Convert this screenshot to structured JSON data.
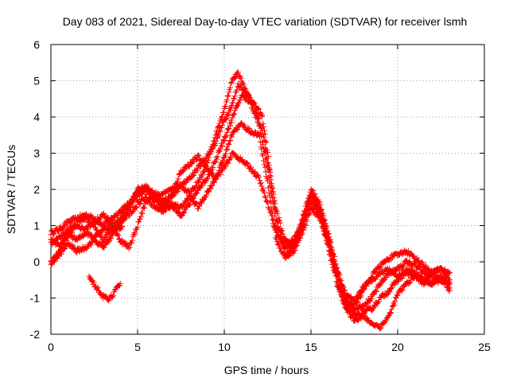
{
  "chart_data": {
    "type": "scatter",
    "title": "Day 083 of 2021, Sidereal Day-to-day VTEC variation (SDTVAR) for receiver lsmh",
    "xlabel": "GPS time / hours",
    "ylabel": "SDTVAR / TECUs",
    "xlim": [
      0,
      25
    ],
    "ylim": [
      -2,
      6
    ],
    "x_ticks": [
      "0",
      "5",
      "10",
      "15",
      "20",
      "25"
    ],
    "y_ticks": [
      "-2",
      "-1",
      "0",
      "1",
      "2",
      "3",
      "4",
      "5",
      "6"
    ],
    "grid": true,
    "marker": "plus",
    "color": "#ff0000",
    "series": [
      {
        "points": [
          [
            0,
            0.8
          ],
          [
            0.5,
            0.9
          ],
          [
            1,
            1.1
          ],
          [
            1.5,
            1.2
          ],
          [
            2,
            1.3
          ],
          [
            2.5,
            1.2
          ],
          [
            3,
            1.0
          ],
          [
            3.5,
            1.2
          ],
          [
            4,
            1.4
          ],
          [
            4.5,
            1.6
          ],
          [
            5,
            1.8
          ],
          [
            5.5,
            2.0
          ],
          [
            6,
            1.9
          ],
          [
            6.5,
            1.7
          ],
          [
            7,
            1.8
          ],
          [
            7.5,
            2.1
          ],
          [
            8,
            2.3
          ],
          [
            8.5,
            2.6
          ],
          [
            9,
            2.9
          ],
          [
            9.5,
            3.3
          ],
          [
            10,
            3.9
          ],
          [
            10.5,
            4.4
          ],
          [
            10.8,
            4.9
          ],
          [
            11.2,
            4.7
          ],
          [
            11.8,
            4.3
          ],
          [
            12.2,
            4.0
          ],
          [
            12.5,
            3.0
          ],
          [
            13,
            1.2
          ],
          [
            13.5,
            0.4
          ],
          [
            14,
            0.5
          ],
          [
            14.5,
            1.0
          ],
          [
            15,
            1.9
          ],
          [
            15.5,
            1.5
          ],
          [
            16,
            0.7
          ],
          [
            16.5,
            -0.3
          ],
          [
            17,
            -1.1
          ],
          [
            17.5,
            -1.3
          ],
          [
            18,
            -1.2
          ],
          [
            18.5,
            -1.0
          ],
          [
            19,
            -0.6
          ],
          [
            19.5,
            -0.3
          ],
          [
            20,
            -0.2
          ],
          [
            20.5,
            0.0
          ],
          [
            21,
            -0.1
          ],
          [
            21.5,
            -0.3
          ],
          [
            22,
            -0.4
          ],
          [
            22.5,
            -0.5
          ],
          [
            23,
            -0.7
          ]
        ]
      },
      {
        "points": [
          [
            0,
            0.5
          ],
          [
            0.5,
            0.7
          ],
          [
            1,
            0.8
          ],
          [
            1.5,
            0.6
          ],
          [
            2,
            0.8
          ],
          [
            2.5,
            0.7
          ],
          [
            3,
            0.9
          ],
          [
            3.5,
            1.0
          ],
          [
            4,
            0.6
          ],
          [
            4.5,
            0.4
          ],
          [
            5,
            1.0
          ],
          [
            5.5,
            1.7
          ],
          [
            6,
            1.8
          ],
          [
            6.5,
            1.4
          ],
          [
            7,
            1.6
          ],
          [
            7.5,
            1.5
          ],
          [
            8,
            1.8
          ],
          [
            8.5,
            1.5
          ],
          [
            9,
            1.9
          ],
          [
            9.5,
            2.3
          ],
          [
            10,
            2.9
          ],
          [
            10.5,
            3.6
          ],
          [
            11,
            3.8
          ],
          [
            11.5,
            3.6
          ],
          [
            12,
            3.5
          ],
          [
            12.5,
            2.2
          ],
          [
            13,
            0.6
          ],
          [
            13.5,
            0.1
          ],
          [
            14,
            0.3
          ],
          [
            14.5,
            0.8
          ],
          [
            15,
            1.5
          ],
          [
            15.5,
            1.2
          ],
          [
            16,
            0.4
          ],
          [
            16.5,
            -0.6
          ],
          [
            17,
            -1.2
          ],
          [
            17.5,
            -1.5
          ],
          [
            18,
            -1.4
          ],
          [
            18.5,
            -1.3
          ],
          [
            19,
            -1.0
          ],
          [
            19.5,
            -0.8
          ],
          [
            20,
            -0.5
          ],
          [
            20.5,
            -0.3
          ],
          [
            21,
            -0.4
          ],
          [
            21.5,
            -0.6
          ],
          [
            22,
            -0.3
          ],
          [
            22.5,
            -0.2
          ],
          [
            23,
            -0.5
          ]
        ]
      },
      {
        "points": [
          [
            0,
            0.0
          ],
          [
            0.5,
            0.2
          ],
          [
            1,
            0.5
          ],
          [
            1.5,
            0.3
          ],
          [
            2,
            0.4
          ],
          [
            2.5,
            0.6
          ],
          [
            3,
            0.4
          ],
          [
            3.5,
            0.7
          ],
          [
            4,
            1.1
          ],
          [
            4.5,
            1.3
          ],
          [
            5,
            1.6
          ],
          [
            5.5,
            1.8
          ],
          [
            6,
            1.5
          ],
          [
            6.5,
            1.4
          ],
          [
            7,
            1.9
          ],
          [
            7.5,
            2.5
          ],
          [
            8,
            2.7
          ],
          [
            8.5,
            2.9
          ],
          [
            9,
            2.6
          ],
          [
            9.5,
            2.3
          ],
          [
            10,
            2.6
          ],
          [
            10.5,
            3.0
          ],
          [
            11,
            2.8
          ],
          [
            11.5,
            2.6
          ],
          [
            12,
            2.3
          ],
          [
            12.5,
            1.6
          ],
          [
            13,
            0.8
          ],
          [
            13.5,
            0.5
          ],
          [
            14,
            0.6
          ],
          [
            14.5,
            1.1
          ],
          [
            15,
            1.7
          ],
          [
            15.5,
            1.3
          ],
          [
            16,
            0.5
          ],
          [
            16.5,
            -0.5
          ],
          [
            17,
            -1.3
          ],
          [
            17.5,
            -1.6
          ],
          [
            18,
            -1.5
          ],
          [
            18.5,
            -1.7
          ],
          [
            19,
            -1.8
          ],
          [
            19.5,
            -1.5
          ],
          [
            20,
            -0.9
          ],
          [
            20.5,
            -0.6
          ],
          [
            21,
            -0.4
          ],
          [
            21.5,
            -0.5
          ],
          [
            22,
            -0.6
          ],
          [
            22.5,
            -0.5
          ],
          [
            23,
            -0.6
          ]
        ]
      },
      {
        "points": [
          [
            0,
            0.6
          ],
          [
            0.5,
            0.4
          ],
          [
            1,
            0.9
          ],
          [
            1.5,
            1.0
          ],
          [
            2,
            0.9
          ],
          [
            2.5,
            1.1
          ],
          [
            3,
            1.3
          ],
          [
            3.5,
            1.1
          ],
          [
            4,
            0.9
          ],
          [
            4.5,
            1.5
          ],
          [
            5,
            2.0
          ],
          [
            5.5,
            2.1
          ],
          [
            6,
            1.7
          ],
          [
            6.5,
            1.6
          ],
          [
            7,
            1.5
          ],
          [
            7.5,
            1.3
          ],
          [
            8,
            1.6
          ],
          [
            8.5,
            2.0
          ],
          [
            9,
            2.3
          ],
          [
            9.5,
            2.8
          ],
          [
            10,
            3.4
          ],
          [
            10.5,
            4.0
          ],
          [
            11,
            4.6
          ],
          [
            11.5,
            4.4
          ],
          [
            12,
            3.8
          ],
          [
            12.5,
            2.6
          ],
          [
            13,
            1.0
          ],
          [
            13.5,
            0.2
          ],
          [
            14,
            0.4
          ],
          [
            14.5,
            0.9
          ],
          [
            15,
            1.8
          ],
          [
            15.5,
            1.4
          ],
          [
            16,
            0.6
          ],
          [
            16.5,
            -0.4
          ],
          [
            17,
            -1.0
          ],
          [
            17.5,
            -1.2
          ],
          [
            18,
            -0.8
          ],
          [
            18.5,
            -0.4
          ],
          [
            19,
            -0.1
          ],
          [
            19.5,
            0.1
          ],
          [
            20,
            0.2
          ],
          [
            20.5,
            0.3
          ],
          [
            21,
            0.1
          ],
          [
            21.5,
            -0.1
          ],
          [
            22,
            -0.3
          ],
          [
            22.5,
            -0.2
          ],
          [
            23,
            -0.3
          ]
        ]
      },
      {
        "points": [
          [
            0,
            -0.1
          ],
          [
            0.5,
            0.3
          ],
          [
            1,
            0.7
          ],
          [
            1.5,
            1.1
          ],
          [
            2,
            1.2
          ],
          [
            2.5,
            1.0
          ],
          [
            3,
            0.6
          ],
          [
            3.5,
            0.9
          ],
          [
            4,
            1.2
          ],
          [
            4.5,
            1.6
          ],
          [
            5,
            1.9
          ],
          [
            5.5,
            2.0
          ],
          [
            6,
            1.8
          ],
          [
            6.5,
            1.9
          ],
          [
            7,
            2.0
          ],
          [
            7.5,
            2.1
          ],
          [
            8,
            1.9
          ],
          [
            8.5,
            2.2
          ],
          [
            9,
            2.7
          ],
          [
            9.5,
            3.5
          ],
          [
            10,
            4.2
          ],
          [
            10.5,
            5.1
          ],
          [
            10.8,
            5.2
          ],
          [
            11.2,
            4.8
          ],
          [
            11.8,
            4.2
          ],
          [
            12.2,
            3.6
          ],
          [
            12.5,
            2.8
          ],
          [
            13,
            1.4
          ],
          [
            13.5,
            0.6
          ],
          [
            14,
            0.4
          ],
          [
            14.5,
            1.2
          ],
          [
            15,
            2.0
          ],
          [
            15.5,
            1.6
          ],
          [
            16,
            0.8
          ],
          [
            16.5,
            -0.2
          ],
          [
            17,
            -0.9
          ],
          [
            17.5,
            -1.1
          ],
          [
            18,
            -0.7
          ],
          [
            18.5,
            -0.5
          ],
          [
            19,
            -0.3
          ],
          [
            19.5,
            -0.2
          ],
          [
            20,
            -0.4
          ],
          [
            20.5,
            -0.2
          ],
          [
            21,
            -0.3
          ],
          [
            21.5,
            -0.5
          ],
          [
            22,
            -0.6
          ],
          [
            22.5,
            -0.4
          ],
          [
            23,
            -0.8
          ]
        ]
      },
      {
        "points": [
          [
            2.2,
            -0.4
          ],
          [
            2.6,
            -0.7
          ],
          [
            3.0,
            -0.95
          ],
          [
            3.3,
            -1.05
          ],
          [
            3.6,
            -0.9
          ],
          [
            3.9,
            -0.65
          ],
          [
            4.0,
            -0.6
          ]
        ]
      }
    ]
  }
}
